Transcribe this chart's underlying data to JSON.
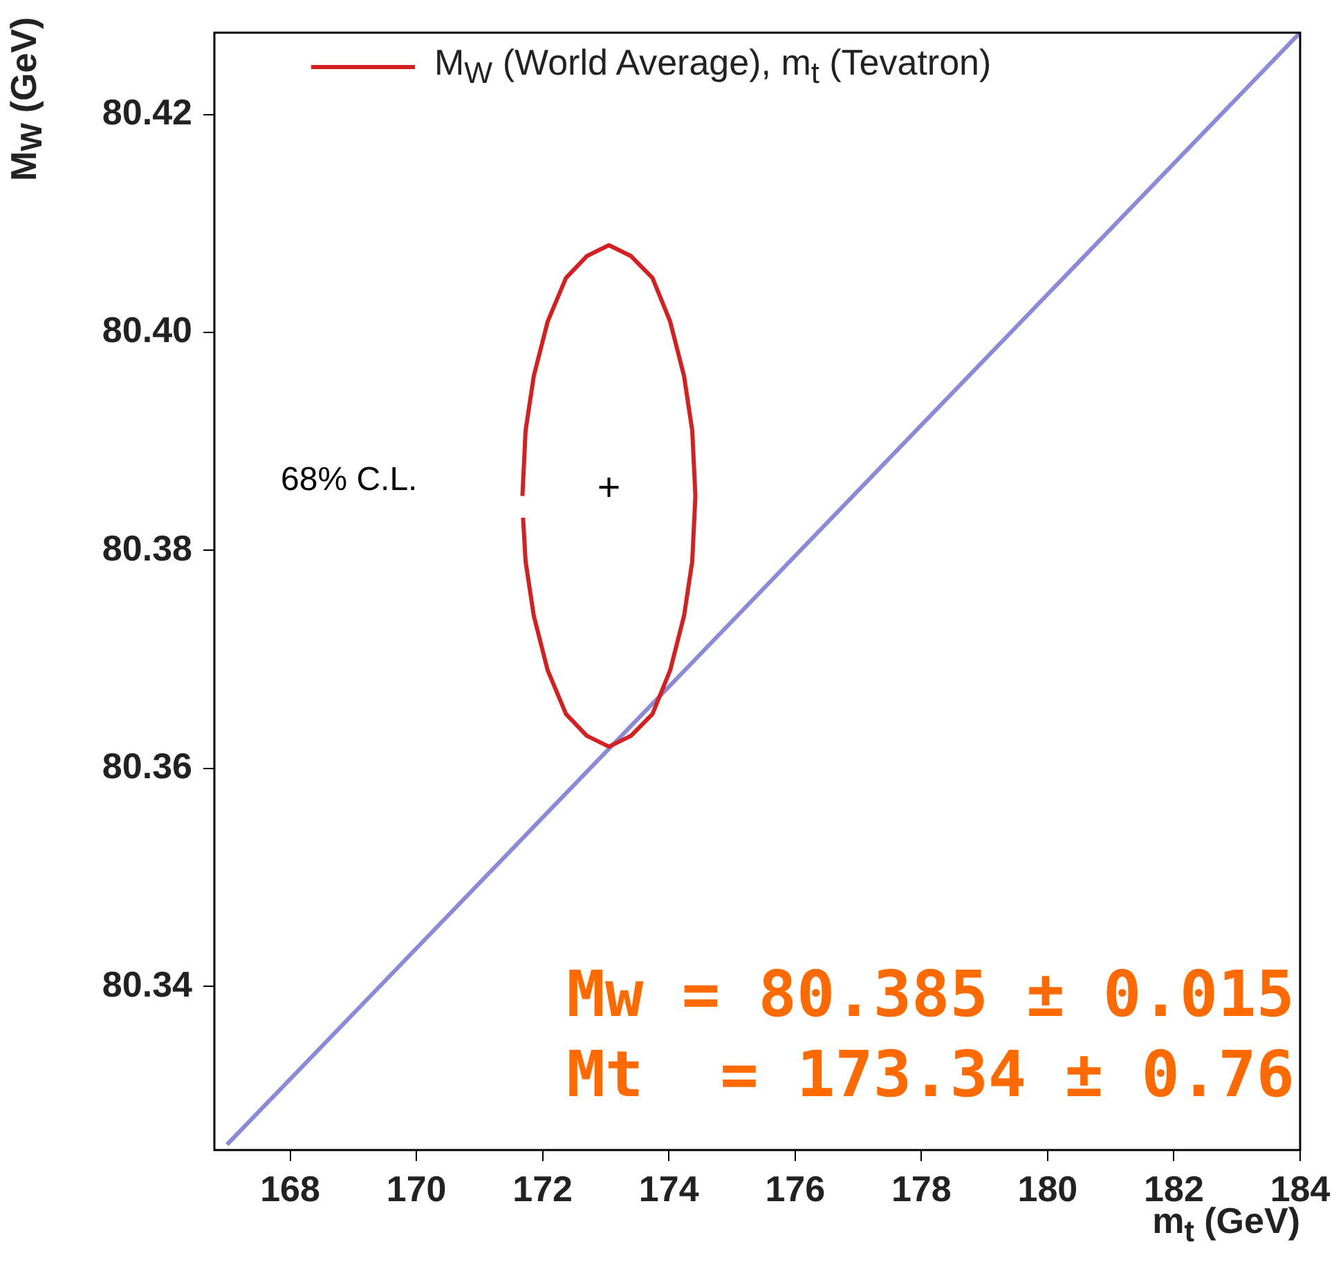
{
  "chart_data": {
    "type": "line",
    "xlabel": "m$_{t}$ (GeV)",
    "ylabel": "M$_{W}$ (GeV)",
    "xlim": [
      166.8,
      184
    ],
    "xticks": [
      168,
      170,
      172,
      174,
      176,
      178,
      180,
      182,
      184
    ],
    "ylim": [
      80.325,
      80.4275
    ],
    "yticks": [
      80.34,
      80.36,
      80.38,
      {
        "value": 80.4,
        "label": "80.40"
      },
      80.42
    ],
    "grid": false,
    "legend": "top",
    "series": [
      {
        "name": "M$_{W}$ (World Average), m$_{t}$ (Tevatron)",
        "color": "#d42020",
        "type": "line",
        "x": [
          171.68,
          171.73,
          171.86,
          172.08,
          172.37,
          172.7,
          173.05,
          173.4,
          173.74,
          174.02,
          174.24,
          174.37,
          174.42,
          174.37,
          174.24,
          174.02,
          173.74,
          173.4,
          173.05,
          172.7,
          172.37,
          172.08,
          171.86,
          171.73,
          171.69
        ],
        "values": [
          80.385,
          80.391,
          80.396,
          80.401,
          80.405,
          80.407,
          80.408,
          80.407,
          80.405,
          80.401,
          80.396,
          80.391,
          80.385,
          80.379,
          80.374,
          80.369,
          80.365,
          80.363,
          80.362,
          80.363,
          80.365,
          80.369,
          80.374,
          80.379,
          80.383
        ]
      },
      {
        "color": "#8a8ad8",
        "type": "line",
        "x": [
          167,
          184
        ],
        "values": [
          80.3255,
          80.4275
        ]
      },
      {
        "color": "#000000",
        "type": "scatter",
        "marker": "cross",
        "x": [
          173.05
        ],
        "values": [
          80.3858
        ]
      }
    ],
    "annotations": [
      "68% C.L.",
      "Mw = 80.385 ± 0.015",
      "Mt  = 173.34 ± 0.76"
    ]
  }
}
